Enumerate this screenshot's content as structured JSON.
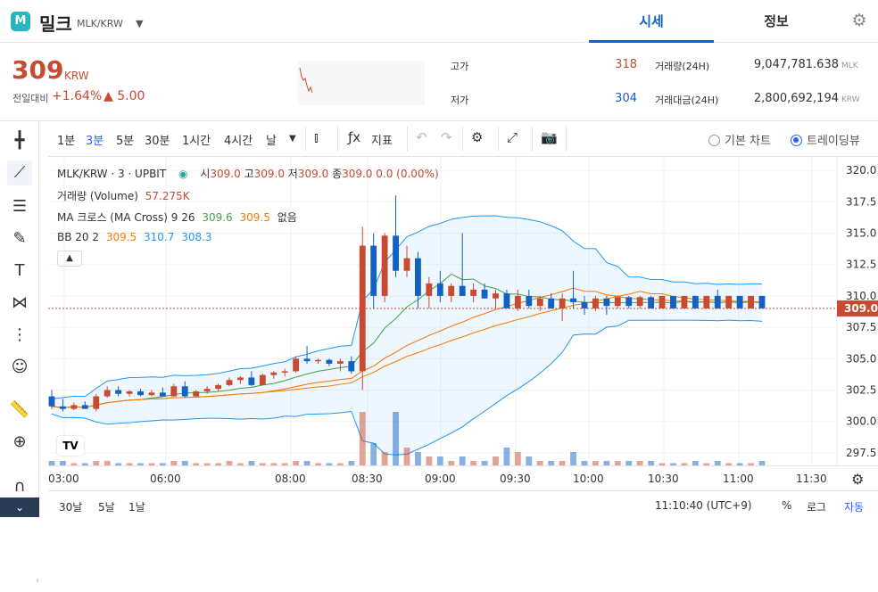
{
  "header": {
    "logo_letter": "M",
    "coin_name": "밀크",
    "pair": "MLK/KRW",
    "tabs": [
      {
        "label": "시세"
      },
      {
        "label": "정보"
      }
    ],
    "accent": "#1261c4"
  },
  "summary": {
    "price": "309",
    "price_unit": "KRW",
    "change_label": "전일대비",
    "change_pct": "+1.64%",
    "change_amt": "▲ 5.00",
    "rise_color": "#c84a31",
    "fall_color": "#1261c4",
    "high_label": "고가",
    "high": "318",
    "low_label": "저가",
    "low": "304",
    "volume_label": "거래량(24H)",
    "volume": "9,047,781.638",
    "volume_unit": "MLK",
    "amount_label": "거래대금(24H)",
    "amount": "2,800,692,194",
    "amount_unit": "KRW"
  },
  "toolbar": {
    "timeframes": [
      "1분",
      "3분",
      "5분",
      "30분",
      "1시간",
      "4시간",
      "날"
    ],
    "active_timeframe": "3분",
    "indicator_label": "지표",
    "chart_mode_basic": "기본 차트",
    "chart_mode_tv": "트레이딩뷰"
  },
  "legend": {
    "title": "MLK/KRW · 3 · UPBIT",
    "ohlc": [
      {
        "k": "시",
        "v": "309.0"
      },
      {
        "k": "고",
        "v": "309.0"
      },
      {
        "k": "저",
        "v": "309.0"
      },
      {
        "k": "종",
        "v": "309.0"
      }
    ],
    "change": "0.0 (0.00%)",
    "volume_label": "거래량 (Volume)",
    "volume_value": "57.275K",
    "ma_label": "MA 크로스 (MA Cross)",
    "ma_params": "9 26",
    "ma_values": [
      "309.6",
      "309.5"
    ],
    "ma_none": "없음",
    "bb_label": "BB 20 2",
    "bb_values": [
      "309.5",
      "310.7",
      "308.3"
    ],
    "tv_logo": "TV"
  },
  "time_axis": [
    "03:00",
    "06:00",
    "08:00",
    "08:30",
    "09:00",
    "09:30",
    "10:00",
    "10:30",
    "11:00",
    "11:30"
  ],
  "bottom_bar": {
    "ranges": [
      "30날",
      "5날",
      "1날"
    ],
    "clock": "11:10:40 (UTC+9)",
    "percent": "%",
    "log": "로그",
    "auto": "자동"
  },
  "chart_data": {
    "type": "candlestick",
    "price_axis": {
      "ticks": [
        320.0,
        317.5,
        315.0,
        312.5,
        310.0,
        307.5,
        305.0,
        302.5,
        300.0,
        297.5
      ],
      "range": [
        296.5,
        321.0
      ]
    },
    "last_price": "309.0",
    "colors": {
      "up": "#c84a31",
      "down": "#1261c4",
      "ma_fast": "#43a047",
      "ma_slow": "#f57c00",
      "bb": "#2196f3"
    },
    "candles": [
      {
        "o": 302,
        "h": 302.5,
        "l": 301.0,
        "c": 301.2
      },
      {
        "o": 301.2,
        "h": 301.8,
        "l": 300.8,
        "c": 301.0
      },
      {
        "o": 301.0,
        "h": 301.5,
        "l": 300.9,
        "c": 301.3
      },
      {
        "o": 301.3,
        "h": 301.6,
        "l": 301.0,
        "c": 301.0
      },
      {
        "o": 301.0,
        "h": 302.2,
        "l": 300.8,
        "c": 302.0
      },
      {
        "o": 302.0,
        "h": 302.8,
        "l": 301.9,
        "c": 302.5
      },
      {
        "o": 302.5,
        "h": 302.8,
        "l": 302.0,
        "c": 302.2
      },
      {
        "o": 302.2,
        "h": 302.5,
        "l": 302.0,
        "c": 302.4
      },
      {
        "o": 302.4,
        "h": 302.6,
        "l": 302.0,
        "c": 302.1
      },
      {
        "o": 302.1,
        "h": 302.5,
        "l": 302.0,
        "c": 302.3
      },
      {
        "o": 302.3,
        "h": 302.7,
        "l": 302.0,
        "c": 302.0
      },
      {
        "o": 302.0,
        "h": 303.0,
        "l": 302.0,
        "c": 302.8
      },
      {
        "o": 302.8,
        "h": 303.2,
        "l": 301.9,
        "c": 302.0
      },
      {
        "o": 302.0,
        "h": 302.5,
        "l": 302.0,
        "c": 302.4
      },
      {
        "o": 302.4,
        "h": 302.8,
        "l": 302.2,
        "c": 302.6
      },
      {
        "o": 302.6,
        "h": 303.0,
        "l": 302.4,
        "c": 302.9
      },
      {
        "o": 302.9,
        "h": 303.5,
        "l": 302.8,
        "c": 303.3
      },
      {
        "o": 303.3,
        "h": 303.6,
        "l": 303.0,
        "c": 303.5
      },
      {
        "o": 303.5,
        "h": 304.0,
        "l": 302.8,
        "c": 302.9
      },
      {
        "o": 302.9,
        "h": 303.8,
        "l": 302.9,
        "c": 303.7
      },
      {
        "o": 303.7,
        "h": 304.0,
        "l": 303.4,
        "c": 303.9
      },
      {
        "o": 303.9,
        "h": 304.2,
        "l": 303.6,
        "c": 304.0
      },
      {
        "o": 304.0,
        "h": 305.2,
        "l": 303.9,
        "c": 305.0
      },
      {
        "o": 305.0,
        "h": 306.0,
        "l": 304.6,
        "c": 304.8
      },
      {
        "o": 304.8,
        "h": 305.0,
        "l": 304.6,
        "c": 304.9
      },
      {
        "o": 304.9,
        "h": 305.0,
        "l": 304.4,
        "c": 304.6
      },
      {
        "o": 304.6,
        "h": 305.0,
        "l": 304.0,
        "c": 304.8
      },
      {
        "o": 304.8,
        "h": 305.2,
        "l": 303.8,
        "c": 304.0
      },
      {
        "o": 304.0,
        "h": 315.5,
        "l": 302.5,
        "c": 314.0
      },
      {
        "o": 314.0,
        "h": 315.0,
        "l": 309.0,
        "c": 310.0
      },
      {
        "o": 310.0,
        "h": 315.0,
        "l": 309.5,
        "c": 314.8
      },
      {
        "o": 314.8,
        "h": 318.0,
        "l": 311.5,
        "c": 312.0
      },
      {
        "o": 312.0,
        "h": 314.0,
        "l": 311.5,
        "c": 313.0
      },
      {
        "o": 313.0,
        "h": 313.5,
        "l": 309.0,
        "c": 310.0
      },
      {
        "o": 310.0,
        "h": 311.5,
        "l": 309.0,
        "c": 311.0
      },
      {
        "o": 311.0,
        "h": 312.0,
        "l": 309.5,
        "c": 310.0
      },
      {
        "o": 310.0,
        "h": 311.0,
        "l": 309.5,
        "c": 310.8
      },
      {
        "o": 310.8,
        "h": 315.0,
        "l": 310.0,
        "c": 310.0
      },
      {
        "o": 310.0,
        "h": 311.0,
        "l": 309.5,
        "c": 310.5
      },
      {
        "o": 310.5,
        "h": 311.0,
        "l": 309.8,
        "c": 309.8
      },
      {
        "o": 309.8,
        "h": 310.5,
        "l": 309.0,
        "c": 310.2
      },
      {
        "o": 310.2,
        "h": 310.5,
        "l": 309.0,
        "c": 309.0
      },
      {
        "o": 309.0,
        "h": 310.5,
        "l": 308.8,
        "c": 310.0
      },
      {
        "o": 310.0,
        "h": 310.5,
        "l": 309.0,
        "c": 309.2
      },
      {
        "o": 309.2,
        "h": 310.0,
        "l": 308.8,
        "c": 309.8
      },
      {
        "o": 309.8,
        "h": 310.2,
        "l": 309.0,
        "c": 309.0
      },
      {
        "o": 309.0,
        "h": 310.2,
        "l": 308.0,
        "c": 309.8
      },
      {
        "o": 309.8,
        "h": 312.0,
        "l": 309.0,
        "c": 309.5
      },
      {
        "o": 309.5,
        "h": 310.0,
        "l": 308.5,
        "c": 309.0
      },
      {
        "o": 309.0,
        "h": 310.0,
        "l": 308.8,
        "c": 309.8
      },
      {
        "o": 309.8,
        "h": 310.0,
        "l": 308.5,
        "c": 309.2
      },
      {
        "o": 309.2,
        "h": 310.0,
        "l": 309.0,
        "c": 309.9
      },
      {
        "o": 309.9,
        "h": 310.0,
        "l": 309.0,
        "c": 309.2
      },
      {
        "o": 309.2,
        "h": 310.0,
        "l": 309.0,
        "c": 309.9
      },
      {
        "o": 309.9,
        "h": 310.0,
        "l": 309.0,
        "c": 309.0
      },
      {
        "o": 309.0,
        "h": 310.0,
        "l": 309.0,
        "c": 310.0
      },
      {
        "o": 310.0,
        "h": 310.0,
        "l": 309.0,
        "c": 309.0
      },
      {
        "o": 309.0,
        "h": 310.0,
        "l": 309.0,
        "c": 310.0
      },
      {
        "o": 310.0,
        "h": 310.0,
        "l": 309.0,
        "c": 309.0
      },
      {
        "o": 309.0,
        "h": 310.0,
        "l": 309.0,
        "c": 310.0
      },
      {
        "o": 310.0,
        "h": 310.5,
        "l": 309.0,
        "c": 309.0
      },
      {
        "o": 309.0,
        "h": 310.0,
        "l": 309.0,
        "c": 310.0
      },
      {
        "o": 310.0,
        "h": 310.0,
        "l": 309.0,
        "c": 309.0
      },
      {
        "o": 309.0,
        "h": 310.0,
        "l": 309.0,
        "c": 310.0
      },
      {
        "o": 310.0,
        "h": 310.0,
        "l": 309.0,
        "c": 309.0
      }
    ],
    "volume": [
      1,
      1,
      0.5,
      0.5,
      1,
      1,
      0.5,
      0.5,
      0.5,
      0.5,
      0.5,
      1,
      1,
      0.5,
      0.5,
      0.5,
      1,
      0.5,
      1,
      0.5,
      0.5,
      0.5,
      1,
      1,
      0.5,
      0.5,
      0.5,
      1,
      12,
      5,
      3,
      12,
      4,
      3,
      2,
      2,
      1,
      2,
      1,
      1,
      2,
      4,
      3,
      2,
      1,
      1,
      1,
      3,
      1,
      1,
      1,
      1,
      1,
      1,
      1,
      0.5,
      0.5,
      0.5,
      1,
      0.5,
      1,
      0.5,
      0.5,
      0.5,
      1
    ]
  }
}
